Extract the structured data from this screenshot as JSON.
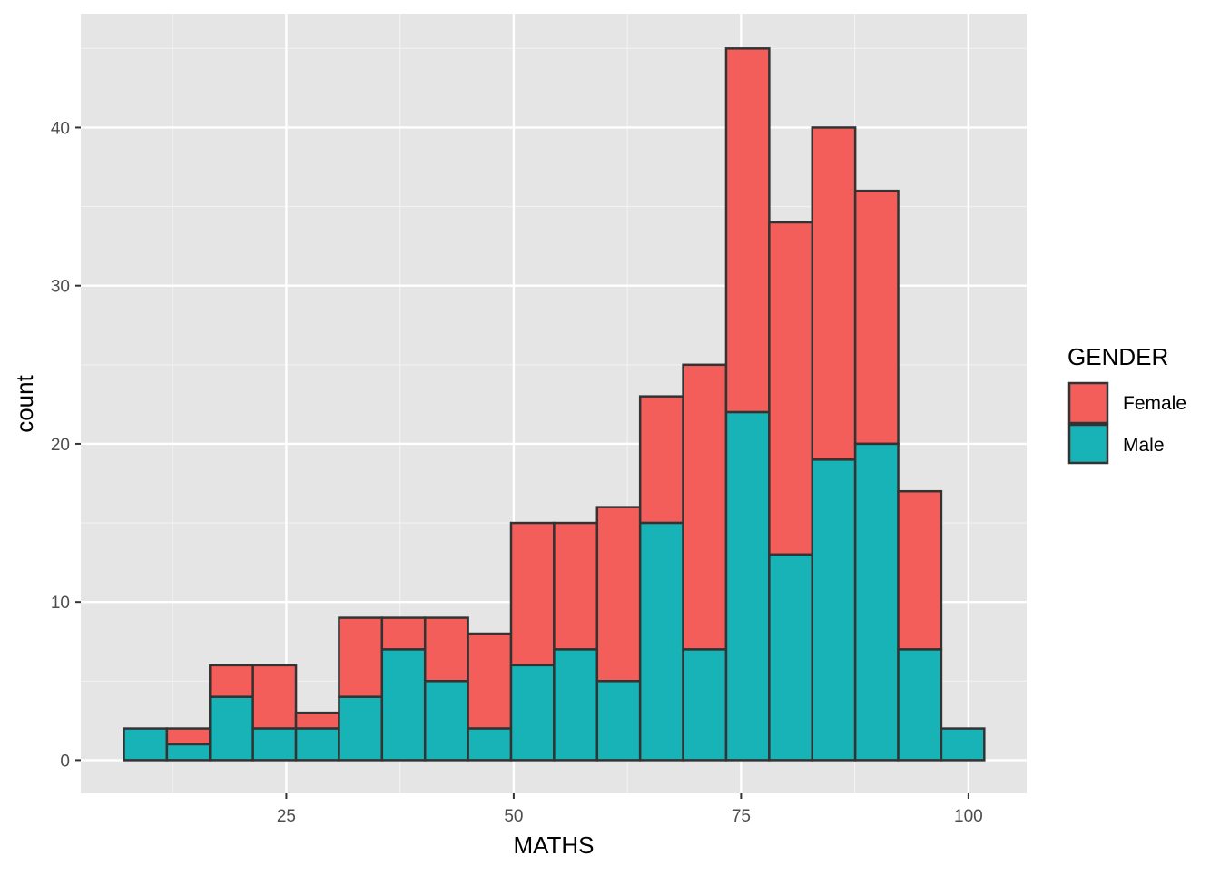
{
  "chart_data": {
    "type": "bar",
    "subtype": "stacked-histogram",
    "xlabel": "MATHS",
    "ylabel": "count",
    "xlim": [
      2.4,
      106.4
    ],
    "ylim": [
      -2.1,
      47.2
    ],
    "x_ticks": [
      25,
      50,
      75,
      100
    ],
    "y_ticks": [
      0,
      10,
      20,
      30,
      40
    ],
    "grid": true,
    "bin_start": 7.14,
    "bin_width": 4.73,
    "legend": {
      "title": "GENDER",
      "position": "right",
      "entries": [
        {
          "label": "Female",
          "color": "#F35E5A"
        },
        {
          "label": "Male",
          "color": "#17B3B7"
        }
      ]
    },
    "series": [
      {
        "name": "Male",
        "values": [
          2,
          1,
          4,
          2,
          2,
          4,
          7,
          5,
          2,
          6,
          7,
          5,
          15,
          7,
          22,
          13,
          19,
          20,
          7,
          2
        ]
      },
      {
        "name": "Female",
        "values": [
          0,
          1,
          2,
          4,
          1,
          5,
          2,
          4,
          6,
          9,
          8,
          11,
          8,
          18,
          23,
          21,
          21,
          16,
          10,
          0
        ]
      }
    ]
  }
}
